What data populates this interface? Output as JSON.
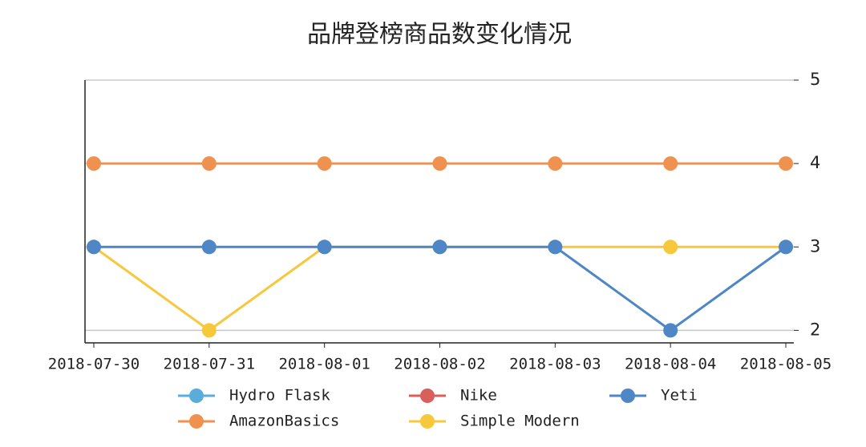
{
  "chart_data": {
    "type": "line",
    "title": "品牌登榜商品数变化情况",
    "categories": [
      "2018-07-30",
      "2018-07-31",
      "2018-08-01",
      "2018-08-02",
      "2018-08-03",
      "2018-08-04",
      "2018-08-05"
    ],
    "series": [
      {
        "name": "Hydro Flask",
        "color": "#5aacdc",
        "values": [
          null,
          null,
          null,
          null,
          null,
          null,
          null
        ]
      },
      {
        "name": "AmazonBasics",
        "color": "#f0924f",
        "values": [
          4,
          4,
          4,
          4,
          4,
          4,
          4
        ]
      },
      {
        "name": "Nike",
        "color": "#d9605a",
        "values": [
          null,
          null,
          null,
          null,
          null,
          null,
          null
        ]
      },
      {
        "name": "Simple Modern",
        "color": "#f7c83c",
        "values": [
          3,
          2,
          3,
          3,
          3,
          3,
          3
        ]
      },
      {
        "name": "Yeti",
        "color": "#4f86c6",
        "values": [
          3,
          3,
          3,
          3,
          3,
          2,
          3
        ]
      }
    ],
    "ylim": [
      1.85,
      5
    ],
    "yticks": [
      2,
      3,
      4,
      5
    ],
    "grid": true,
    "legend": "bottom"
  }
}
